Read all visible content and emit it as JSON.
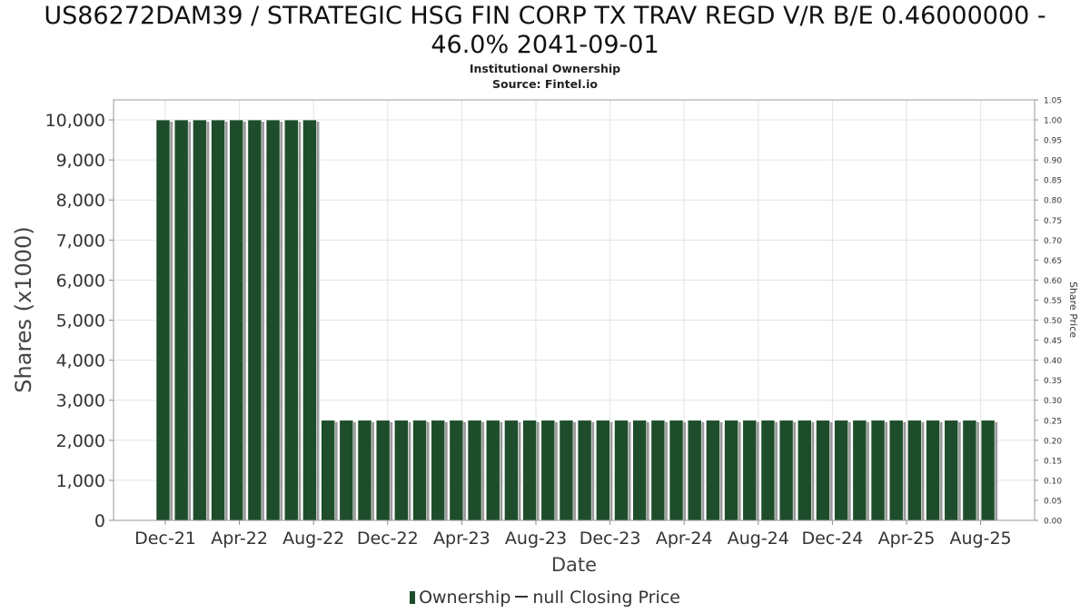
{
  "chart_data": {
    "type": "bar",
    "title_line1": "US86272DAM39 / STRATEGIC HSG FIN CORP TX TRAV REGD V/R B/E 0.46000000 -",
    "title_line2": "46.0% 2041-09-01",
    "subtitle": "Institutional Ownership",
    "source": "Source: Fintel.io",
    "xlabel": "Date",
    "ylabel": "Shares (x1000)",
    "y2label": "Share Price",
    "ylim": [
      0,
      10500
    ],
    "y_ticks": [
      "0",
      "1,000",
      "2,000",
      "3,000",
      "4,000",
      "5,000",
      "6,000",
      "7,000",
      "8,000",
      "9,000",
      "10,000"
    ],
    "y_tick_values": [
      0,
      1000,
      2000,
      3000,
      4000,
      5000,
      6000,
      7000,
      8000,
      9000,
      10000
    ],
    "y2lim": [
      0,
      1.05
    ],
    "y2_ticks": [
      "0.00",
      "0.05",
      "0.10",
      "0.15",
      "0.20",
      "0.25",
      "0.30",
      "0.35",
      "0.40",
      "0.45",
      "0.50",
      "0.55",
      "0.60",
      "0.65",
      "0.70",
      "0.75",
      "0.80",
      "0.85",
      "0.90",
      "0.95",
      "1.00",
      "1.05"
    ],
    "x_tick_labels": [
      "Dec-21",
      "Apr-22",
      "Aug-22",
      "Dec-22",
      "Apr-23",
      "Aug-23",
      "Dec-23",
      "Apr-24",
      "Aug-24",
      "Dec-24",
      "Apr-25",
      "Aug-25"
    ],
    "grid": true,
    "series": [
      {
        "name": "Ownership",
        "color": "#1e4d2b",
        "values": [
          10000,
          10000,
          10000,
          10000,
          10000,
          10000,
          10000,
          10000,
          10000,
          2500,
          2500,
          2500,
          2500,
          2500,
          2500,
          2500,
          2500,
          2500,
          2500,
          2500,
          2500,
          2500,
          2500,
          2500,
          2500,
          2500,
          2500,
          2500,
          2500,
          2500,
          2500,
          2500,
          2500,
          2500,
          2500,
          2500,
          2500,
          2500,
          2500,
          2500,
          2500,
          2500,
          2500,
          2500,
          2500,
          2500
        ]
      }
    ],
    "legend": {
      "ownership_label": "Ownership",
      "price_label": "null Closing Price"
    }
  }
}
